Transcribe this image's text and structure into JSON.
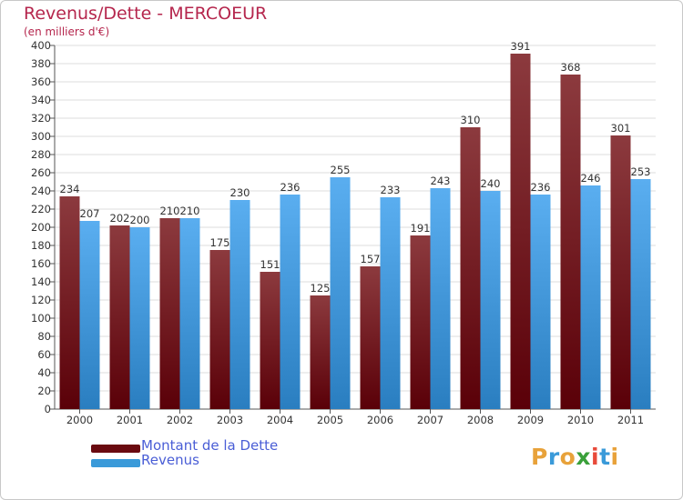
{
  "colors": {
    "dette": "#7a1a1f",
    "revenus": "#3a9ad9",
    "title": "#b5264d",
    "legend_text": "#4a5ed6"
  },
  "logo": {
    "letters": [
      "P",
      "r",
      "o",
      "x",
      "i",
      "t",
      "i"
    ],
    "colors": [
      "#e8a23a",
      "#3a9ad9",
      "#e8a23a",
      "#3aa03a",
      "#e84a3a",
      "#3a9ad9",
      "#e8a23a"
    ]
  },
  "chart_data": {
    "type": "bar",
    "title": "Revenus/Dette - MERCOEUR",
    "subtitle": "(en milliers d'€)",
    "xlabel": "",
    "ylabel": "",
    "ylim": [
      0,
      400
    ],
    "ytick_step": 20,
    "grid": true,
    "legend_position": "bottom-left",
    "categories": [
      "2000",
      "2001",
      "2002",
      "2003",
      "2004",
      "2005",
      "2006",
      "2007",
      "2008",
      "2009",
      "2010",
      "2011"
    ],
    "series": [
      {
        "name": "Montant de la Dette",
        "values": [
          234,
          202,
          210,
          175,
          151,
          125,
          157,
          191,
          310,
          391,
          368,
          301
        ]
      },
      {
        "name": "Revenus",
        "values": [
          207,
          200,
          210,
          230,
          236,
          255,
          233,
          243,
          240,
          236,
          246,
          253
        ]
      }
    ]
  }
}
